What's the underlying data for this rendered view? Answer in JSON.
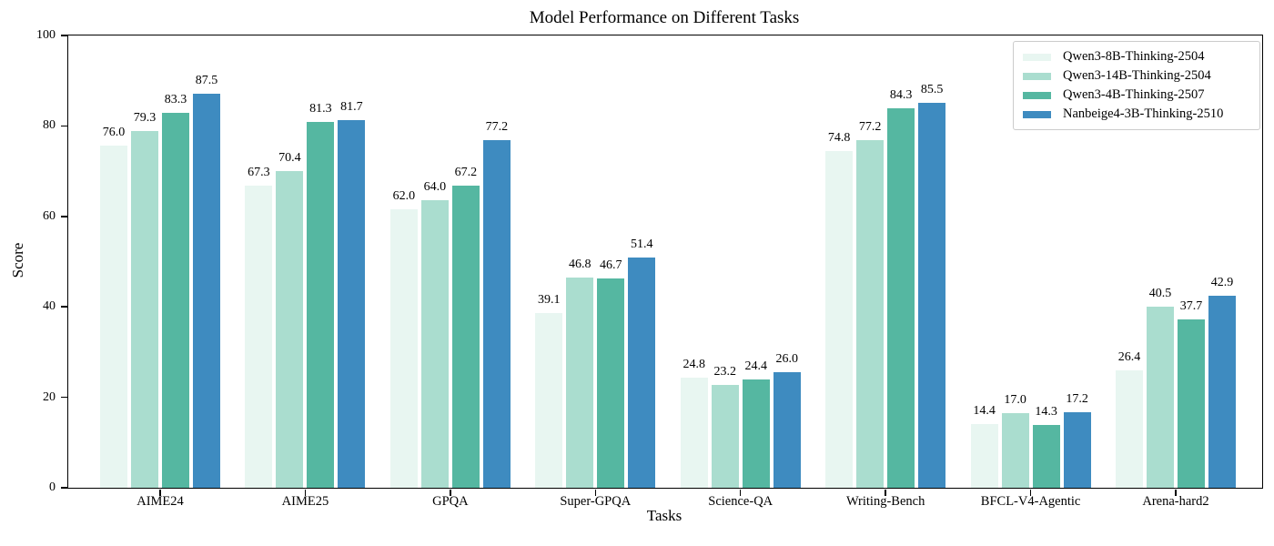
{
  "chart_data": {
    "type": "bar",
    "title": "Model Performance on Different Tasks",
    "xlabel": "Tasks",
    "ylabel": "Score",
    "ylim": [
      0,
      100
    ],
    "yticks": [
      0,
      20,
      40,
      60,
      80,
      100
    ],
    "grid": false,
    "legend_position": "upper right",
    "bar_edge_color": "#ffffff",
    "categories": [
      "AIME24",
      "AIME25",
      "GPQA",
      "Super-GPQA",
      "Science-QA",
      "Writing-Bench",
      "BFCL-V4-Agentic",
      "Arena-hard2"
    ],
    "series": [
      {
        "name": "Qwen3-8B-Thinking-2504",
        "color": "#e8f6f1",
        "values": [
          76.0,
          67.3,
          62.0,
          39.1,
          24.8,
          74.8,
          14.4,
          26.4
        ]
      },
      {
        "name": "Qwen3-14B-Thinking-2504",
        "color": "#aaddcf",
        "values": [
          79.3,
          70.4,
          64.0,
          46.8,
          23.2,
          77.2,
          17.0,
          40.5
        ]
      },
      {
        "name": "Qwen3-4B-Thinking-2507",
        "color": "#55b7a1",
        "values": [
          83.3,
          81.3,
          67.2,
          46.7,
          24.4,
          84.3,
          14.3,
          37.7
        ]
      },
      {
        "name": "Nanbeige4-3B-Thinking-2510",
        "color": "#3e8bc0",
        "values": [
          87.5,
          81.7,
          77.2,
          51.4,
          26.0,
          85.5,
          17.2,
          42.9
        ]
      }
    ]
  }
}
